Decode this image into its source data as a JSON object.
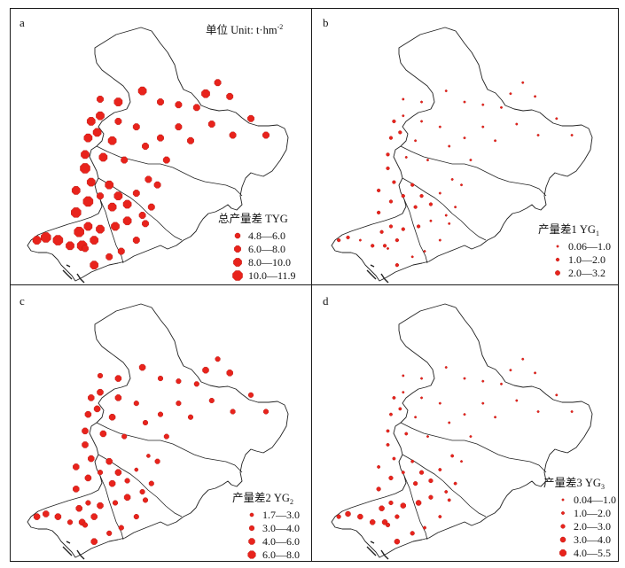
{
  "panels": [
    {
      "id": "a",
      "label": "a",
      "unit_text": "单位 Unit: t·hm",
      "unit_sup": "-2",
      "legend_title_main": "总产量差 TYG",
      "legend_title_sub": "",
      "legend_items": [
        {
          "label": "4.8—6.0",
          "level": 1
        },
        {
          "label": "6.0—8.0",
          "level": 2
        },
        {
          "label": "8.0—10.0",
          "level": 3
        },
        {
          "label": "10.0—11.9",
          "level": 4
        }
      ],
      "points": [
        [
          0.23,
          0.81,
          4
        ],
        [
          0.26,
          0.79,
          3
        ],
        [
          0.28,
          0.84,
          3
        ],
        [
          0.24,
          0.86,
          4
        ],
        [
          0.2,
          0.86,
          3
        ],
        [
          0.16,
          0.84,
          4
        ],
        [
          0.12,
          0.83,
          4
        ],
        [
          0.09,
          0.84,
          3
        ],
        [
          0.22,
          0.74,
          4
        ],
        [
          0.26,
          0.7,
          4
        ],
        [
          0.22,
          0.66,
          3
        ],
        [
          0.27,
          0.63,
          3
        ],
        [
          0.33,
          0.64,
          3
        ],
        [
          0.36,
          0.68,
          3
        ],
        [
          0.3,
          0.68,
          2
        ],
        [
          0.34,
          0.72,
          3
        ],
        [
          0.39,
          0.71,
          3
        ],
        [
          0.39,
          0.77,
          3
        ],
        [
          0.44,
          0.75,
          2
        ],
        [
          0.35,
          0.79,
          3
        ],
        [
          0.3,
          0.8,
          3
        ],
        [
          0.25,
          0.87,
          2
        ],
        [
          0.28,
          0.93,
          3
        ],
        [
          0.33,
          0.9,
          2
        ],
        [
          0.37,
          0.88,
          2
        ],
        [
          0.42,
          0.84,
          2
        ],
        [
          0.45,
          0.78,
          2
        ],
        [
          0.47,
          0.72,
          2
        ],
        [
          0.42,
          0.67,
          2
        ],
        [
          0.46,
          0.62,
          2
        ],
        [
          0.25,
          0.58,
          4
        ],
        [
          0.25,
          0.53,
          3
        ],
        [
          0.31,
          0.54,
          3
        ],
        [
          0.34,
          0.48,
          3
        ],
        [
          0.29,
          0.45,
          3
        ],
        [
          0.26,
          0.47,
          3
        ],
        [
          0.3,
          0.39,
          3
        ],
        [
          0.3,
          0.33,
          2
        ],
        [
          0.36,
          0.34,
          3
        ],
        [
          0.36,
          0.41,
          2
        ],
        [
          0.42,
          0.43,
          2
        ],
        [
          0.38,
          0.55,
          2
        ],
        [
          0.45,
          0.5,
          2
        ],
        [
          0.5,
          0.47,
          2
        ],
        [
          0.56,
          0.43,
          2
        ],
        [
          0.52,
          0.55,
          2
        ],
        [
          0.44,
          0.3,
          3
        ],
        [
          0.5,
          0.34,
          2
        ],
        [
          0.56,
          0.35,
          2
        ],
        [
          0.62,
          0.36,
          2
        ],
        [
          0.65,
          0.31,
          3
        ],
        [
          0.69,
          0.27,
          2
        ],
        [
          0.73,
          0.32,
          2
        ],
        [
          0.67,
          0.42,
          2
        ],
        [
          0.74,
          0.46,
          2
        ],
        [
          0.8,
          0.4,
          2
        ],
        [
          0.85,
          0.46,
          2
        ],
        [
          0.6,
          0.48,
          2
        ],
        [
          0.49,
          0.64,
          2
        ],
        [
          0.27,
          0.41,
          3
        ]
      ]
    },
    {
      "id": "b",
      "label": "b",
      "unit_text": "",
      "unit_sup": "",
      "legend_title_main": "产量差1 YG",
      "legend_title_sub": "1",
      "legend_items": [
        {
          "label": "0.06—1.0",
          "level": 1
        },
        {
          "label": "1.0—2.0",
          "level": 2
        },
        {
          "label": "2.0—3.2",
          "level": 3
        }
      ],
      "points": [
        [
          0.23,
          0.81,
          2
        ],
        [
          0.26,
          0.79,
          2
        ],
        [
          0.28,
          0.84,
          2
        ],
        [
          0.24,
          0.86,
          2
        ],
        [
          0.2,
          0.86,
          2
        ],
        [
          0.16,
          0.84,
          1
        ],
        [
          0.12,
          0.83,
          2
        ],
        [
          0.09,
          0.84,
          2
        ],
        [
          0.22,
          0.74,
          2
        ],
        [
          0.26,
          0.7,
          2
        ],
        [
          0.22,
          0.66,
          2
        ],
        [
          0.27,
          0.63,
          2
        ],
        [
          0.33,
          0.64,
          2
        ],
        [
          0.36,
          0.68,
          2
        ],
        [
          0.3,
          0.68,
          2
        ],
        [
          0.34,
          0.72,
          2
        ],
        [
          0.39,
          0.71,
          2
        ],
        [
          0.39,
          0.77,
          1
        ],
        [
          0.44,
          0.75,
          1
        ],
        [
          0.35,
          0.79,
          2
        ],
        [
          0.3,
          0.8,
          2
        ],
        [
          0.25,
          0.87,
          1
        ],
        [
          0.28,
          0.93,
          2
        ],
        [
          0.33,
          0.9,
          1
        ],
        [
          0.37,
          0.88,
          1
        ],
        [
          0.42,
          0.84,
          1
        ],
        [
          0.45,
          0.78,
          1
        ],
        [
          0.47,
          0.72,
          1
        ],
        [
          0.42,
          0.67,
          1
        ],
        [
          0.46,
          0.62,
          1
        ],
        [
          0.25,
          0.58,
          2
        ],
        [
          0.25,
          0.53,
          2
        ],
        [
          0.31,
          0.54,
          1
        ],
        [
          0.34,
          0.48,
          1
        ],
        [
          0.29,
          0.45,
          2
        ],
        [
          0.26,
          0.47,
          2
        ],
        [
          0.3,
          0.39,
          1
        ],
        [
          0.3,
          0.33,
          1
        ],
        [
          0.36,
          0.34,
          1
        ],
        [
          0.36,
          0.41,
          1
        ],
        [
          0.42,
          0.43,
          1
        ],
        [
          0.38,
          0.55,
          1
        ],
        [
          0.45,
          0.5,
          1
        ],
        [
          0.5,
          0.47,
          1
        ],
        [
          0.56,
          0.43,
          1
        ],
        [
          0.52,
          0.55,
          1
        ],
        [
          0.44,
          0.3,
          1
        ],
        [
          0.5,
          0.34,
          1
        ],
        [
          0.56,
          0.35,
          1
        ],
        [
          0.62,
          0.36,
          1
        ],
        [
          0.65,
          0.31,
          1
        ],
        [
          0.69,
          0.27,
          1
        ],
        [
          0.73,
          0.32,
          1
        ],
        [
          0.67,
          0.42,
          1
        ],
        [
          0.74,
          0.46,
          1
        ],
        [
          0.8,
          0.4,
          1
        ],
        [
          0.85,
          0.46,
          1
        ],
        [
          0.6,
          0.48,
          1
        ],
        [
          0.49,
          0.64,
          1
        ],
        [
          0.27,
          0.41,
          2
        ]
      ]
    },
    {
      "id": "c",
      "label": "c",
      "unit_text": "",
      "unit_sup": "",
      "legend_title_main": "产量差2 YG",
      "legend_title_sub": "2",
      "legend_items": [
        {
          "label": "1.7—3.0",
          "level": 1
        },
        {
          "label": "3.0—4.0",
          "level": 2
        },
        {
          "label": "4.0—6.0",
          "level": 3
        },
        {
          "label": "6.0—8.0",
          "level": 4
        }
      ],
      "points": [
        [
          0.23,
          0.81,
          3
        ],
        [
          0.26,
          0.79,
          2
        ],
        [
          0.28,
          0.84,
          3
        ],
        [
          0.24,
          0.86,
          3
        ],
        [
          0.2,
          0.86,
          2
        ],
        [
          0.16,
          0.84,
          3
        ],
        [
          0.12,
          0.83,
          3
        ],
        [
          0.09,
          0.84,
          3
        ],
        [
          0.22,
          0.74,
          3
        ],
        [
          0.26,
          0.7,
          3
        ],
        [
          0.22,
          0.66,
          3
        ],
        [
          0.27,
          0.63,
          3
        ],
        [
          0.33,
          0.64,
          3
        ],
        [
          0.36,
          0.68,
          3
        ],
        [
          0.3,
          0.68,
          2
        ],
        [
          0.34,
          0.72,
          3
        ],
        [
          0.39,
          0.71,
          2
        ],
        [
          0.39,
          0.77,
          3
        ],
        [
          0.44,
          0.75,
          2
        ],
        [
          0.35,
          0.79,
          2
        ],
        [
          0.3,
          0.8,
          3
        ],
        [
          0.25,
          0.87,
          2
        ],
        [
          0.28,
          0.93,
          3
        ],
        [
          0.33,
          0.9,
          2
        ],
        [
          0.37,
          0.88,
          2
        ],
        [
          0.42,
          0.84,
          2
        ],
        [
          0.45,
          0.78,
          2
        ],
        [
          0.47,
          0.72,
          2
        ],
        [
          0.42,
          0.67,
          1
        ],
        [
          0.46,
          0.62,
          1
        ],
        [
          0.25,
          0.58,
          3
        ],
        [
          0.25,
          0.53,
          3
        ],
        [
          0.31,
          0.54,
          3
        ],
        [
          0.34,
          0.48,
          3
        ],
        [
          0.29,
          0.45,
          3
        ],
        [
          0.26,
          0.47,
          3
        ],
        [
          0.3,
          0.39,
          3
        ],
        [
          0.3,
          0.33,
          2
        ],
        [
          0.36,
          0.34,
          3
        ],
        [
          0.36,
          0.41,
          3
        ],
        [
          0.42,
          0.43,
          2
        ],
        [
          0.38,
          0.55,
          2
        ],
        [
          0.45,
          0.5,
          2
        ],
        [
          0.5,
          0.47,
          2
        ],
        [
          0.56,
          0.43,
          2
        ],
        [
          0.52,
          0.55,
          2
        ],
        [
          0.44,
          0.3,
          3
        ],
        [
          0.5,
          0.34,
          2
        ],
        [
          0.56,
          0.35,
          2
        ],
        [
          0.62,
          0.36,
          2
        ],
        [
          0.65,
          0.31,
          3
        ],
        [
          0.69,
          0.27,
          2
        ],
        [
          0.73,
          0.32,
          3
        ],
        [
          0.67,
          0.42,
          2
        ],
        [
          0.74,
          0.46,
          2
        ],
        [
          0.8,
          0.4,
          2
        ],
        [
          0.85,
          0.46,
          2
        ],
        [
          0.6,
          0.48,
          2
        ],
        [
          0.49,
          0.64,
          2
        ],
        [
          0.27,
          0.41,
          3
        ]
      ]
    },
    {
      "id": "d",
      "label": "d",
      "unit_text": "",
      "unit_sup": "",
      "legend_title_main": "产量差3 YG",
      "legend_title_sub": "3",
      "legend_items": [
        {
          "label": "0.04—1.0",
          "level": 1
        },
        {
          "label": "1.0—2.0",
          "level": 2
        },
        {
          "label": "2.0—3.0",
          "level": 3
        },
        {
          "label": "3.0—4.0",
          "level": 4
        },
        {
          "label": "4.0—5.5",
          "level": 5
        }
      ],
      "points": [
        [
          0.23,
          0.81,
          4
        ],
        [
          0.26,
          0.79,
          3
        ],
        [
          0.28,
          0.84,
          3
        ],
        [
          0.24,
          0.86,
          4
        ],
        [
          0.2,
          0.86,
          4
        ],
        [
          0.16,
          0.84,
          4
        ],
        [
          0.12,
          0.83,
          4
        ],
        [
          0.09,
          0.84,
          3
        ],
        [
          0.22,
          0.74,
          3
        ],
        [
          0.26,
          0.7,
          3
        ],
        [
          0.22,
          0.66,
          2
        ],
        [
          0.27,
          0.63,
          2
        ],
        [
          0.33,
          0.64,
          2
        ],
        [
          0.36,
          0.68,
          3
        ],
        [
          0.3,
          0.68,
          2
        ],
        [
          0.34,
          0.72,
          3
        ],
        [
          0.39,
          0.71,
          3
        ],
        [
          0.39,
          0.77,
          3
        ],
        [
          0.44,
          0.75,
          2
        ],
        [
          0.35,
          0.79,
          4
        ],
        [
          0.3,
          0.8,
          4
        ],
        [
          0.25,
          0.87,
          3
        ],
        [
          0.28,
          0.93,
          4
        ],
        [
          0.33,
          0.9,
          3
        ],
        [
          0.37,
          0.88,
          2
        ],
        [
          0.42,
          0.84,
          2
        ],
        [
          0.45,
          0.78,
          2
        ],
        [
          0.47,
          0.72,
          2
        ],
        [
          0.42,
          0.67,
          2
        ],
        [
          0.46,
          0.62,
          2
        ],
        [
          0.25,
          0.58,
          2
        ],
        [
          0.25,
          0.53,
          2
        ],
        [
          0.31,
          0.54,
          2
        ],
        [
          0.34,
          0.48,
          1
        ],
        [
          0.29,
          0.45,
          2
        ],
        [
          0.26,
          0.47,
          2
        ],
        [
          0.3,
          0.39,
          1
        ],
        [
          0.3,
          0.33,
          1
        ],
        [
          0.36,
          0.34,
          1
        ],
        [
          0.36,
          0.41,
          1
        ],
        [
          0.42,
          0.43,
          1
        ],
        [
          0.38,
          0.55,
          1
        ],
        [
          0.45,
          0.5,
          1
        ],
        [
          0.5,
          0.47,
          1
        ],
        [
          0.56,
          0.43,
          1
        ],
        [
          0.52,
          0.55,
          1
        ],
        [
          0.44,
          0.3,
          1
        ],
        [
          0.5,
          0.34,
          1
        ],
        [
          0.56,
          0.35,
          1
        ],
        [
          0.62,
          0.36,
          1
        ],
        [
          0.65,
          0.31,
          1
        ],
        [
          0.69,
          0.27,
          1
        ],
        [
          0.73,
          0.32,
          1
        ],
        [
          0.67,
          0.42,
          1
        ],
        [
          0.74,
          0.46,
          1
        ],
        [
          0.8,
          0.4,
          1
        ],
        [
          0.85,
          0.46,
          1
        ],
        [
          0.6,
          0.48,
          1
        ],
        [
          0.49,
          0.64,
          1
        ],
        [
          0.27,
          0.41,
          2
        ]
      ]
    }
  ]
}
